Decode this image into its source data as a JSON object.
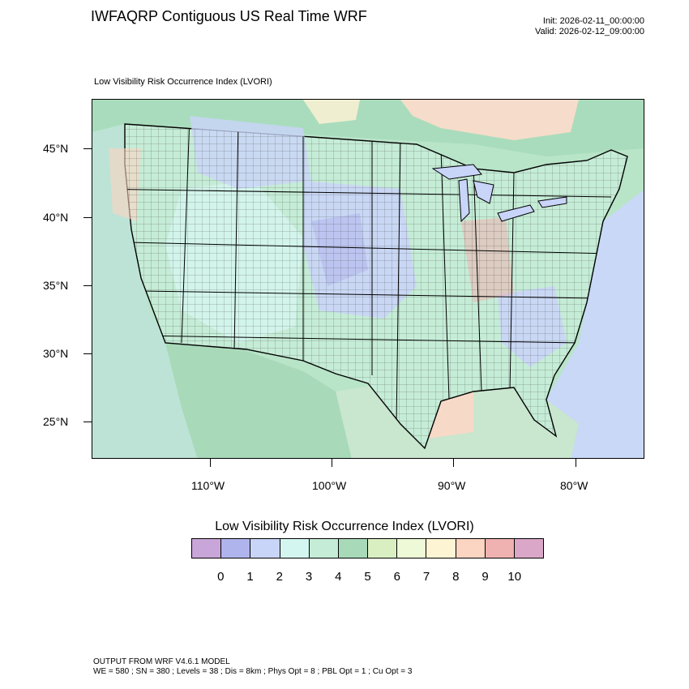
{
  "header": {
    "title": "IWFAQRP Contiguous US Real Time WRF",
    "init": "Init: 2026-02-11_00:00:00",
    "valid": "Valid: 2026-02-12_09:00:00"
  },
  "map": {
    "subtitle": "Low Visibility Risk Occurrence Index   (LVORI)",
    "lat_labels": [
      "45°N",
      "40°N",
      "35°N",
      "30°N",
      "25°N"
    ],
    "lon_labels": [
      "110°W",
      "100°W",
      "90°W",
      "80°W"
    ]
  },
  "colorbar": {
    "title": "Low Visibility Risk Occurrence Index  (LVORI)",
    "labels": [
      "0",
      "1",
      "2",
      "3",
      "4",
      "5",
      "6",
      "7",
      "8",
      "9",
      "10"
    ],
    "colors": [
      "#c9a6d9",
      "#b0b4ec",
      "#c9d4f9",
      "#d4f6f0",
      "#c5ecd6",
      "#a8d9b9",
      "#d9efc2",
      "#edf9d7",
      "#fdf4d4",
      "#fcd4c2",
      "#efb2b0",
      "#dba7c8"
    ]
  },
  "footer": {
    "line1": "OUTPUT FROM WRF V4.6.1 MODEL",
    "line2": "WE = 580 ; SN = 380 ; Levels = 38 ; Dis = 8km ; Phys Opt = 8 ; PBL Opt = 1 ; Cu Opt = 3"
  }
}
